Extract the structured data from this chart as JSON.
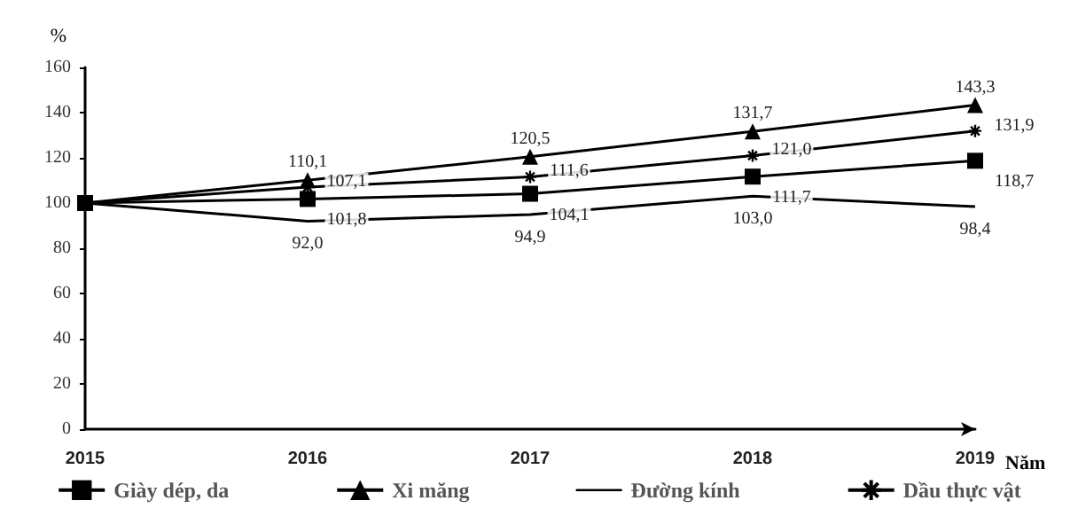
{
  "chart_data": {
    "type": "line",
    "xlabel": "Năm",
    "ylabel": "%",
    "categories": [
      "2015",
      "2016",
      "2017",
      "2018",
      "2019"
    ],
    "ylim": [
      0,
      160
    ],
    "yticks": [
      0,
      20,
      40,
      60,
      80,
      100,
      120,
      140,
      160
    ],
    "grid": false,
    "legend": "bottom",
    "series": [
      {
        "name": "Giày dép, da",
        "color": "#000000",
        "marker": "square",
        "values": [
          100,
          101.8,
          104.1,
          111.7,
          118.7
        ],
        "value_labels": [
          null,
          "101,8",
          "104,1",
          "111,7",
          "118,7"
        ]
      },
      {
        "name": "Xi măng",
        "color": "#000000",
        "marker": "triangle",
        "values": [
          100,
          110.1,
          120.5,
          131.7,
          143.3
        ],
        "value_labels": [
          null,
          "110,1",
          "120,5",
          "131,7",
          "143,3"
        ]
      },
      {
        "name": "Đường kính",
        "color": "#000000",
        "marker": "none",
        "values": [
          100,
          92.0,
          94.9,
          103.0,
          98.4
        ],
        "value_labels": [
          null,
          "92,0",
          "94,9",
          "103,0",
          "98,4"
        ]
      },
      {
        "name": "Dầu thực vật",
        "color": "#000000",
        "marker": "cross",
        "values": [
          100,
          107.1,
          111.6,
          121.0,
          131.9
        ],
        "value_labels": [
          null,
          "107,1",
          "111,6",
          "121,0",
          "131,9"
        ]
      }
    ]
  }
}
